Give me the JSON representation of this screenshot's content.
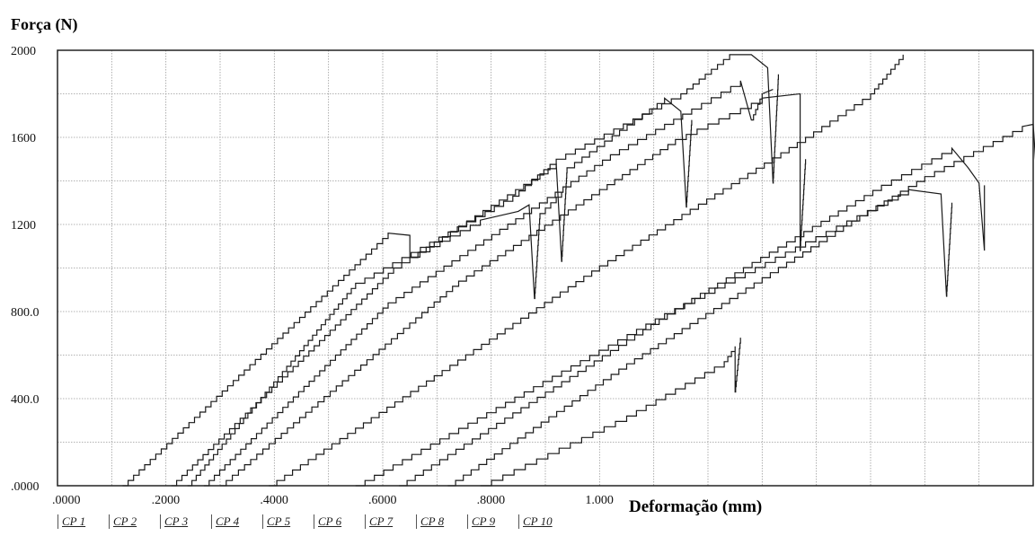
{
  "chart_data": {
    "type": "line",
    "ylabel": "Força (N)",
    "xlabel": "Deformação (mm)",
    "y_ticks": [
      "2000",
      "1600",
      "1200",
      "800.0",
      "400.0",
      ".0000"
    ],
    "y_tick_values": [
      2000,
      1600,
      1200,
      800,
      400,
      0
    ],
    "x_ticks": [
      ".0000",
      ".2000",
      ".4000",
      ".6000",
      ".8000",
      "1.000"
    ],
    "x_tick_values": [
      0,
      0.2,
      0.4,
      0.6,
      0.8,
      1.0
    ],
    "xlim": [
      0,
      1.8
    ],
    "ylim": [
      0,
      2000
    ],
    "grid": true,
    "series": [
      {
        "name": "CP 1",
        "points": [
          [
            0.12,
            0
          ],
          [
            0.61,
            1160
          ],
          [
            0.65,
            1150
          ],
          [
            0.65,
            1050
          ],
          [
            0.78,
            1220
          ],
          [
            0.85,
            1260
          ],
          [
            0.87,
            1290
          ],
          [
            0.88,
            860
          ],
          [
            0.89,
            1250
          ],
          [
            0.93,
            1350
          ]
        ]
      },
      {
        "name": "CP 2",
        "points": [
          [
            0.21,
            0
          ],
          [
            0.62,
            1000
          ],
          [
            0.92,
            1480
          ],
          [
            0.93,
            1030
          ],
          [
            0.94,
            1460
          ],
          [
            1.12,
            1780
          ],
          [
            1.15,
            1720
          ],
          [
            1.16,
            1280
          ],
          [
            1.17,
            1680
          ]
        ]
      },
      {
        "name": "CP 3",
        "points": [
          [
            0.24,
            0
          ],
          [
            0.55,
            930
          ],
          [
            0.84,
            1330
          ],
          [
            0.92,
            1500
          ],
          [
            1.15,
            1800
          ],
          [
            1.24,
            1980
          ],
          [
            1.28,
            1980
          ],
          [
            1.31,
            1920
          ],
          [
            1.32,
            1390
          ],
          [
            1.33,
            1890
          ]
        ]
      },
      {
        "name": "CP 4",
        "points": [
          [
            0.27,
            0
          ],
          [
            0.61,
            840
          ],
          [
            0.86,
            1250
          ],
          [
            1.02,
            1520
          ],
          [
            1.17,
            1730
          ],
          [
            1.26,
            1860
          ],
          [
            1.28,
            1680
          ],
          [
            1.3,
            1800
          ],
          [
            1.32,
            1820
          ]
        ]
      },
      {
        "name": "CP 5",
        "points": [
          [
            0.3,
            0
          ],
          [
            0.74,
            940
          ],
          [
            1.0,
            1360
          ],
          [
            1.14,
            1590
          ],
          [
            1.3,
            1780
          ],
          [
            1.37,
            1800
          ],
          [
            1.37,
            1080
          ],
          [
            1.38,
            1500
          ]
        ]
      },
      {
        "name": "CP 6",
        "points": [
          [
            0.39,
            0
          ],
          [
            1.0,
            1010
          ],
          [
            1.38,
            1600
          ],
          [
            1.5,
            1800
          ],
          [
            1.56,
            1980
          ]
        ]
      },
      {
        "name": "CP 7",
        "points": [
          [
            0.55,
            0
          ],
          [
            1.12,
            790
          ],
          [
            1.38,
            1120
          ],
          [
            1.57,
            1360
          ],
          [
            1.63,
            1340
          ],
          [
            1.64,
            870
          ],
          [
            1.65,
            1300
          ]
        ]
      },
      {
        "name": "CP 8",
        "points": [
          [
            0.63,
            0
          ],
          [
            1.17,
            860
          ],
          [
            1.52,
            1380
          ],
          [
            1.65,
            1550
          ],
          [
            1.68,
            1460
          ],
          [
            1.7,
            1390
          ],
          [
            1.71,
            1080
          ],
          [
            1.71,
            1380
          ]
        ]
      },
      {
        "name": "CP 9",
        "points": [
          [
            0.72,
            0
          ],
          [
            1.05,
            560
          ],
          [
            1.24,
            860
          ],
          [
            1.48,
            1240
          ],
          [
            1.6,
            1420
          ],
          [
            1.78,
            1650
          ],
          [
            1.8,
            1660
          ],
          [
            1.81,
            1280
          ],
          [
            1.84,
            1270
          ],
          [
            1.84,
            1170
          ]
        ]
      },
      {
        "name": "CP 10",
        "points": [
          [
            0.78,
            0
          ],
          [
            1.05,
            320
          ],
          [
            1.23,
            570
          ],
          [
            1.25,
            640
          ],
          [
            1.25,
            430
          ],
          [
            1.26,
            680
          ]
        ]
      }
    ]
  }
}
